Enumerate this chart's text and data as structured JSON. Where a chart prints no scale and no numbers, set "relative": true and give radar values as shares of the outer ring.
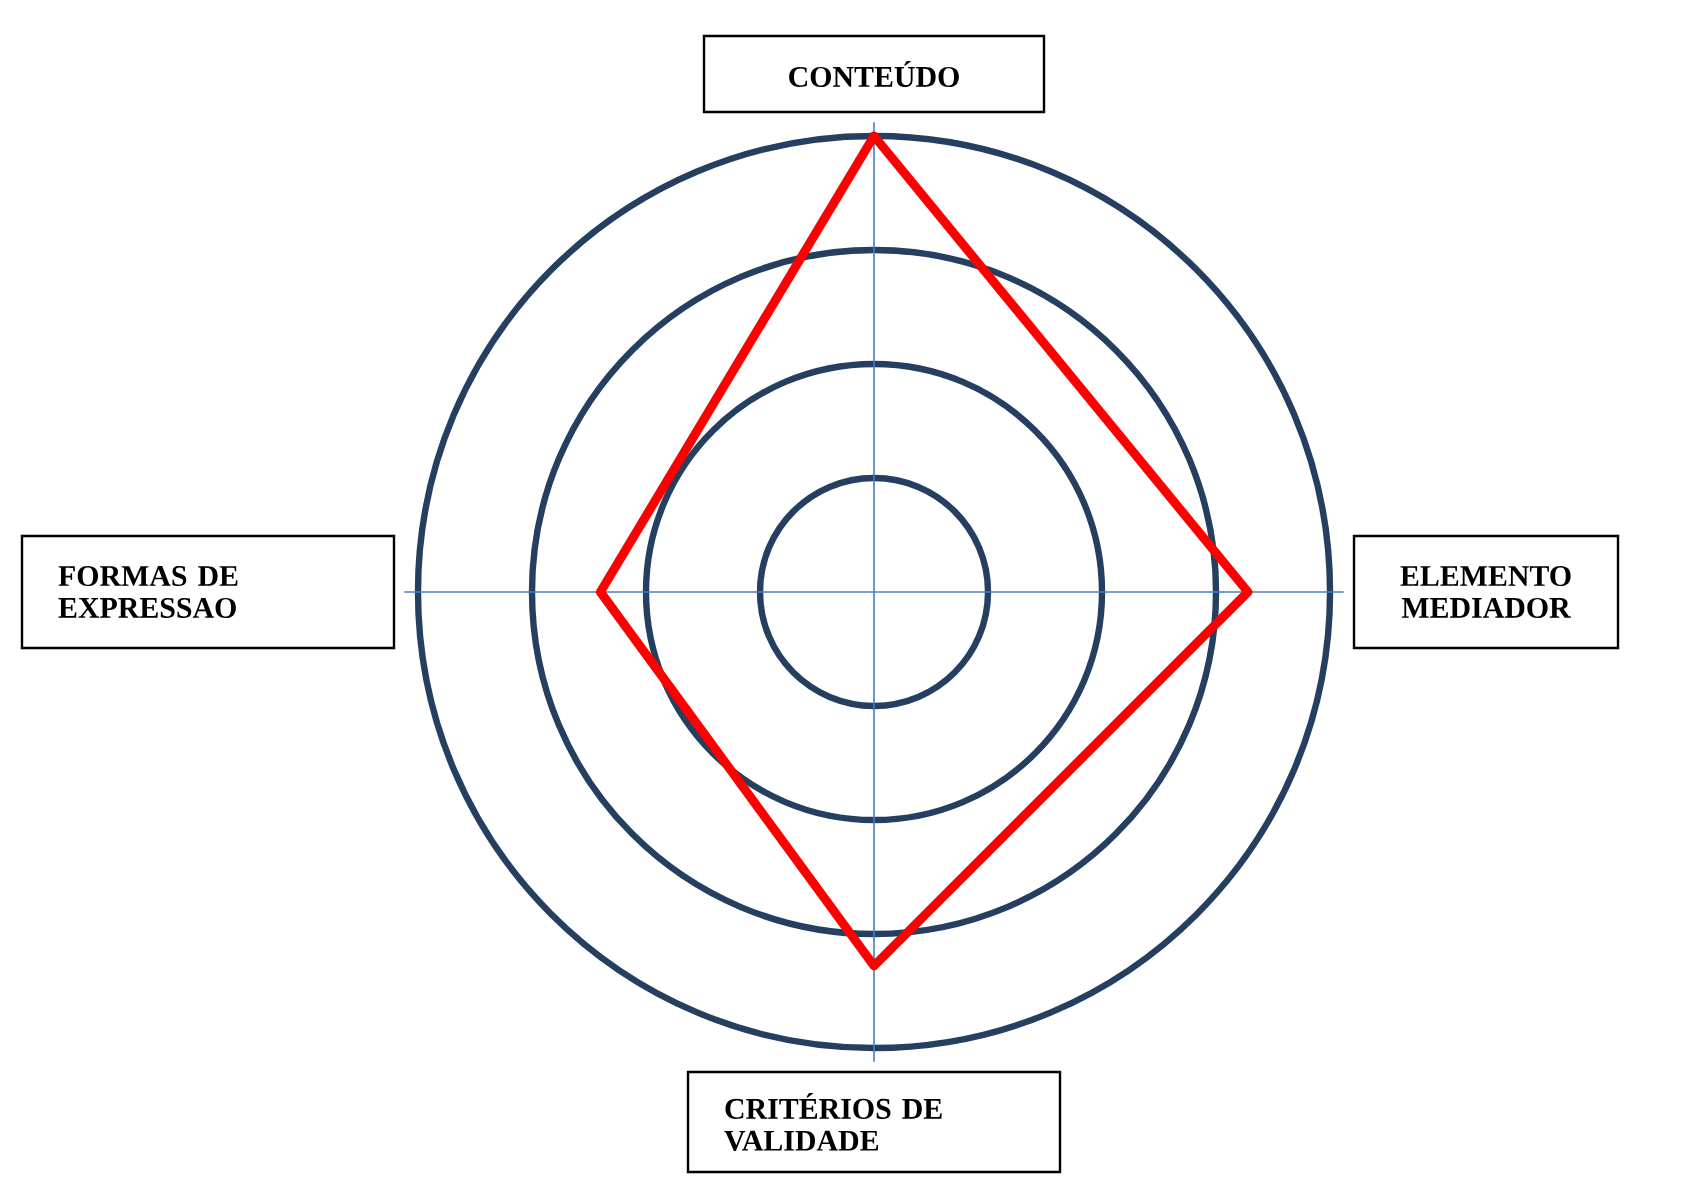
{
  "chart_data": {
    "type": "radar",
    "relative": true,
    "grid": true,
    "categories": [
      "CONTEÚDO",
      "ELEMENTO MEDIADOR",
      "CRITÉRIOS DE VALIDADE",
      "FORMAS DE EXPRESSAO"
    ],
    "series": [
      {
        "color": "#ff0000",
        "values": [
          1,
          0.82,
          0.82,
          0.6
        ]
      }
    ]
  }
}
